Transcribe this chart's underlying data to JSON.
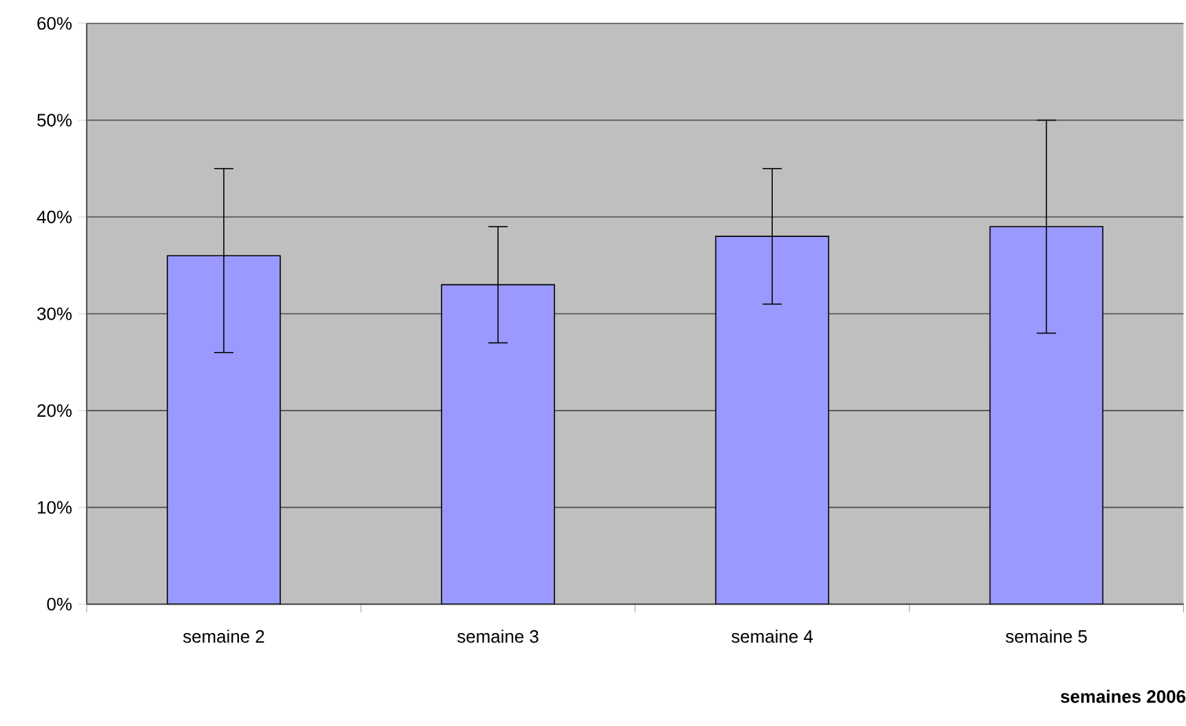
{
  "chart_data": {
    "type": "bar",
    "xlabel": "semaines 2006",
    "categories": [
      "semaine 2",
      "semaine 3",
      "semaine 4",
      "semaine 5"
    ],
    "values": [
      36,
      33,
      38,
      39
    ],
    "errors": [
      [
        26,
        45
      ],
      [
        27,
        39
      ],
      [
        31,
        45
      ],
      [
        28,
        50
      ]
    ],
    "color": "#9999ff",
    "ylim": [
      0,
      60
    ],
    "yticks": [
      {
        "value": 0,
        "label": "0%"
      },
      {
        "value": 10,
        "label": "10%"
      },
      {
        "value": 20,
        "label": "20%"
      },
      {
        "value": 30,
        "label": "30%"
      },
      {
        "value": 40,
        "label": "40%"
      },
      {
        "value": 50,
        "label": "50%"
      },
      {
        "value": 60,
        "label": "60%"
      }
    ],
    "grid": "y"
  }
}
